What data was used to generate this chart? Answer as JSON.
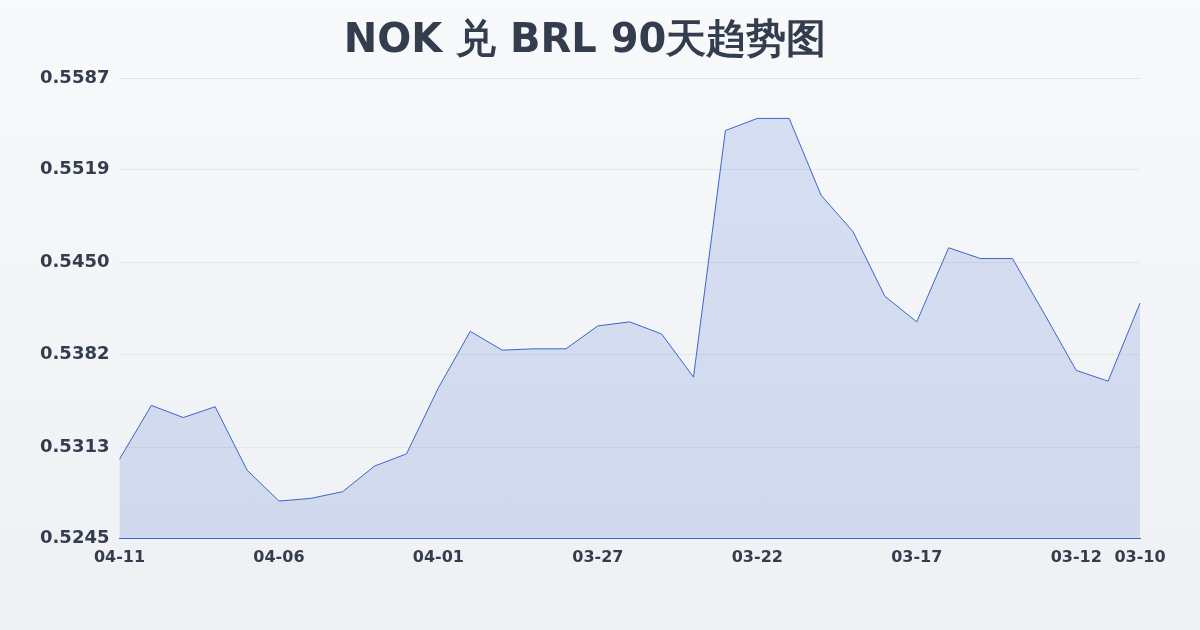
{
  "chart_data": {
    "type": "area",
    "title": "NOK 兑 BRL 90天趋势图",
    "categories": [
      "04-11",
      null,
      null,
      null,
      null,
      "04-06",
      null,
      null,
      null,
      null,
      "04-01",
      null,
      null,
      null,
      null,
      "03-27",
      null,
      null,
      null,
      null,
      "03-22",
      null,
      null,
      null,
      null,
      "03-17",
      null,
      null,
      null,
      null,
      "03-12",
      null,
      "03-10"
    ],
    "series": [
      {
        "color": "#3a66cc",
        "values": [
          0.5304,
          0.5344,
          0.5335,
          0.5343,
          0.5296,
          0.5273,
          0.5275,
          0.528,
          0.5299,
          0.5308,
          0.5357,
          0.5399,
          0.5385,
          0.5386,
          0.5386,
          0.5403,
          0.5406,
          0.5397,
          0.5365,
          0.5548,
          0.5557,
          0.5557,
          0.55,
          0.5473,
          0.5425,
          0.5406,
          0.5461,
          0.5453,
          0.5453,
          0.5412,
          0.537,
          0.5362,
          0.542
        ]
      }
    ],
    "ylim": [
      0.5245,
      0.5587
    ],
    "yticks": [
      0.5245,
      0.5313,
      0.5382,
      {
        "value": 0.545,
        "label": "0.5450"
      },
      0.5519,
      0.5587
    ],
    "grid": "y",
    "legend": false,
    "marker": "none"
  }
}
